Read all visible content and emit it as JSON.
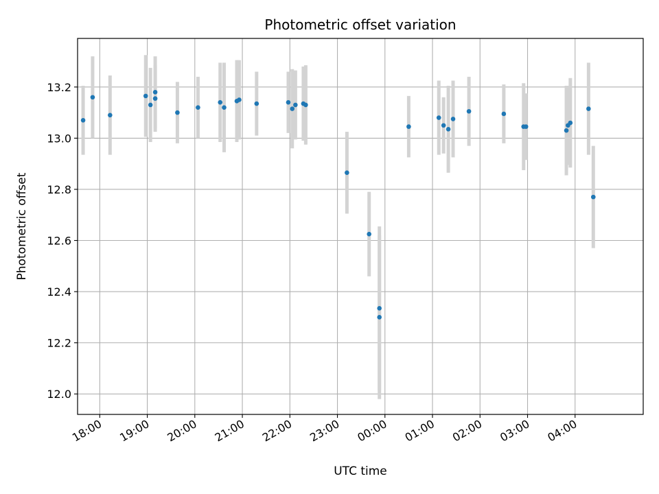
{
  "chart_data": {
    "type": "scatter",
    "title": "Photometric offset variation",
    "xlabel": "UTC time",
    "ylabel": "Photometric offset",
    "x_ticks": [
      "18:00",
      "19:00",
      "20:00",
      "21:00",
      "22:00",
      "23:00",
      "00:00",
      "01:00",
      "02:00",
      "03:00",
      "04:00"
    ],
    "y_ticks": [
      "12.0",
      "12.2",
      "12.4",
      "12.6",
      "12.8",
      "13.0",
      "13.2"
    ],
    "xlim": [
      "17:32",
      "05:26"
    ],
    "ylim": [
      11.92,
      13.39
    ],
    "grid": true,
    "colors": {
      "point": "#1f77b4",
      "errorbar": "#d3d3d3",
      "grid": "#b0b0b0"
    },
    "points": [
      {
        "x": "17:39",
        "y": 13.07,
        "err": 0.135
      },
      {
        "x": "17:51",
        "y": 13.16,
        "err": 0.16
      },
      {
        "x": "18:13",
        "y": 13.09,
        "err": 0.155
      },
      {
        "x": "18:58",
        "y": 13.165,
        "err": 0.16
      },
      {
        "x": "19:04",
        "y": 13.13,
        "err": 0.145
      },
      {
        "x": "19:10",
        "y": 13.18,
        "err": 0.14
      },
      {
        "x": "19:10",
        "y": 13.155,
        "err": 0.13
      },
      {
        "x": "19:38",
        "y": 13.1,
        "err": 0.12
      },
      {
        "x": "20:04",
        "y": 13.12,
        "err": 0.12
      },
      {
        "x": "20:32",
        "y": 13.14,
        "err": 0.155
      },
      {
        "x": "20:37",
        "y": 13.12,
        "err": 0.175
      },
      {
        "x": "20:53",
        "y": 13.145,
        "err": 0.16
      },
      {
        "x": "20:56",
        "y": 13.15,
        "err": 0.155
      },
      {
        "x": "21:18",
        "y": 13.135,
        "err": 0.125
      },
      {
        "x": "21:58",
        "y": 13.14,
        "err": 0.12
      },
      {
        "x": "22:03",
        "y": 13.115,
        "err": 0.155
      },
      {
        "x": "22:07",
        "y": 13.13,
        "err": 0.135
      },
      {
        "x": "22:17",
        "y": 13.135,
        "err": 0.145
      },
      {
        "x": "22:20",
        "y": 13.13,
        "err": 0.155
      },
      {
        "x": "23:12",
        "y": 12.865,
        "err": 0.16
      },
      {
        "x": "23:40",
        "y": 12.625,
        "err": 0.165
      },
      {
        "x": "23:53",
        "y": 12.335,
        "err": 0.32
      },
      {
        "x": "23:53",
        "y": 12.3,
        "err": 0.32
      },
      {
        "x": "00:30",
        "y": 13.045,
        "err": 0.12
      },
      {
        "x": "01:08",
        "y": 13.08,
        "err": 0.145
      },
      {
        "x": "01:14",
        "y": 13.05,
        "err": 0.11
      },
      {
        "x": "01:20",
        "y": 13.035,
        "err": 0.17
      },
      {
        "x": "01:26",
        "y": 13.075,
        "err": 0.15
      },
      {
        "x": "01:46",
        "y": 13.105,
        "err": 0.135
      },
      {
        "x": "02:30",
        "y": 13.095,
        "err": 0.115
      },
      {
        "x": "02:55",
        "y": 13.045,
        "err": 0.17
      },
      {
        "x": "02:58",
        "y": 13.045,
        "err": 0.13
      },
      {
        "x": "03:49",
        "y": 13.03,
        "err": 0.175
      },
      {
        "x": "03:51",
        "y": 13.05,
        "err": 0.155
      },
      {
        "x": "03:54",
        "y": 13.06,
        "err": 0.175
      },
      {
        "x": "04:17",
        "y": 13.115,
        "err": 0.18
      },
      {
        "x": "04:23",
        "y": 12.77,
        "err": 0.2
      }
    ]
  }
}
